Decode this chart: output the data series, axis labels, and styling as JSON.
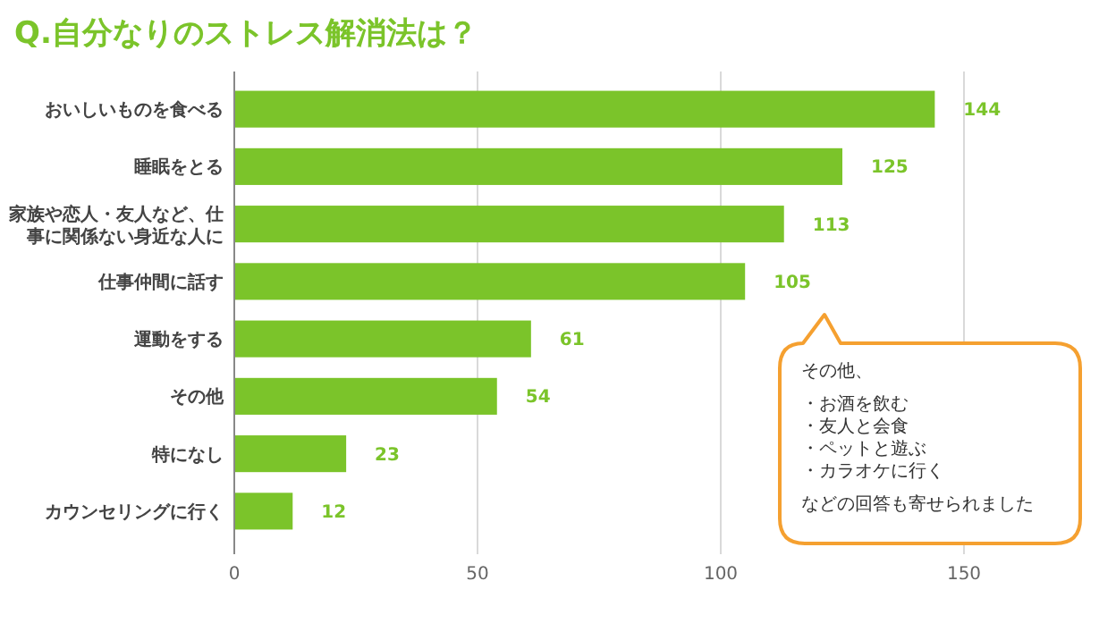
{
  "chart_data": {
    "type": "bar",
    "orientation": "horizontal",
    "title": "Q.自分なりのストレス解消法は？",
    "categories": [
      "おいしいものを食べる",
      "睡眠をとる",
      "家族や恋人・友人など、仕事に関係ない身近な人に",
      "仕事仲間に話す",
      "運動をする",
      "その他",
      "特になし",
      "カウンセリングに行く"
    ],
    "values": [
      144,
      125,
      113,
      105,
      61,
      54,
      23,
      12
    ],
    "color": "#7bc42a",
    "xlim": [
      0,
      150
    ],
    "xticks": [
      0,
      50,
      100,
      150
    ],
    "grid": "x",
    "data_labels": true,
    "annotations": [
      "その他、",
      "・お酒を飲む",
      "・友人と会食",
      "・ペットと遊ぶ",
      "・カラオケに行く",
      "などの回答も寄せられました"
    ]
  }
}
